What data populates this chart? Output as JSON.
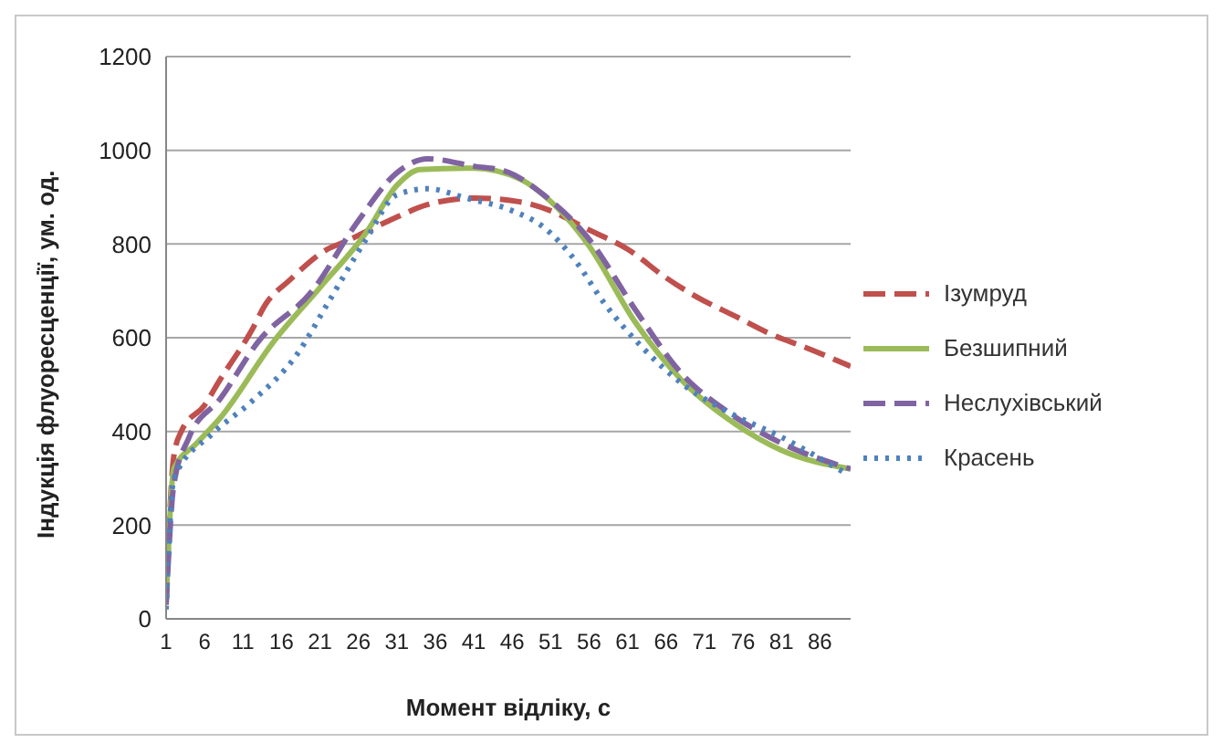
{
  "chart_data": {
    "type": "line",
    "xlabel": "Момент відліку, с",
    "ylabel": "Індукція флуоресценції, ум. од.",
    "xlim": [
      1,
      90
    ],
    "xticks": [
      1,
      6,
      11,
      16,
      21,
      26,
      31,
      36,
      41,
      46,
      51,
      56,
      61,
      66,
      71,
      76,
      81,
      86
    ],
    "ylim": [
      0,
      1200
    ],
    "yticks": [
      0,
      200,
      400,
      600,
      800,
      1000,
      1200
    ],
    "grid": "y",
    "legend": "right",
    "marker": "none",
    "series": [
      {
        "name": "Ізумруд",
        "color": "#c0504d",
        "line_style": "dashed",
        "x": [
          1,
          2,
          3,
          6,
          8,
          12,
          14,
          17,
          22,
          24,
          30,
          35,
          41,
          47,
          51,
          56,
          61,
          66,
          70,
          75,
          80,
          84,
          90
        ],
        "values": [
          40,
          347,
          401,
          456,
          510,
          612,
          673,
          722,
          789,
          803,
          850,
          884,
          898,
          890,
          871,
          830,
          789,
          728,
          687,
          646,
          605,
          580,
          539
        ]
      },
      {
        "name": "Безшипний",
        "color": "#9bbb59",
        "line_style": "solid",
        "x": [
          1,
          2,
          5,
          8,
          15,
          21,
          27,
          31,
          34,
          41,
          47,
          51,
          56,
          62,
          68,
          75,
          81,
          90
        ],
        "values": [
          34,
          320,
          375,
          428,
          592,
          707,
          824,
          925,
          959,
          962,
          939,
          891,
          796,
          633,
          510,
          416,
          360,
          320
        ]
      },
      {
        "name": "Неслухівський",
        "color": "#8064a2",
        "line_style": "dashed",
        "x": [
          1,
          2,
          4,
          8,
          13,
          20,
          26,
          31,
          35,
          41,
          45,
          50,
          56,
          62,
          68,
          74,
          81,
          90
        ],
        "values": [
          30,
          286,
          388,
          469,
          592,
          700,
          850,
          952,
          982,
          966,
          956,
          906,
          810,
          660,
          524,
          442,
          375,
          320
        ]
      },
      {
        "name": "Красень",
        "color": "#4f81bd",
        "line_style": "dotted",
        "x": [
          1,
          2,
          7,
          12,
          18,
          22,
          27,
          31,
          35,
          40,
          46,
          50,
          54,
          58,
          63,
          68,
          74,
          81,
          89
        ],
        "values": [
          20,
          300,
          395,
          462,
          564,
          673,
          810,
          905,
          918,
          898,
          871,
          837,
          769,
          673,
          578,
          503,
          442,
          388,
          314
        ]
      }
    ]
  }
}
